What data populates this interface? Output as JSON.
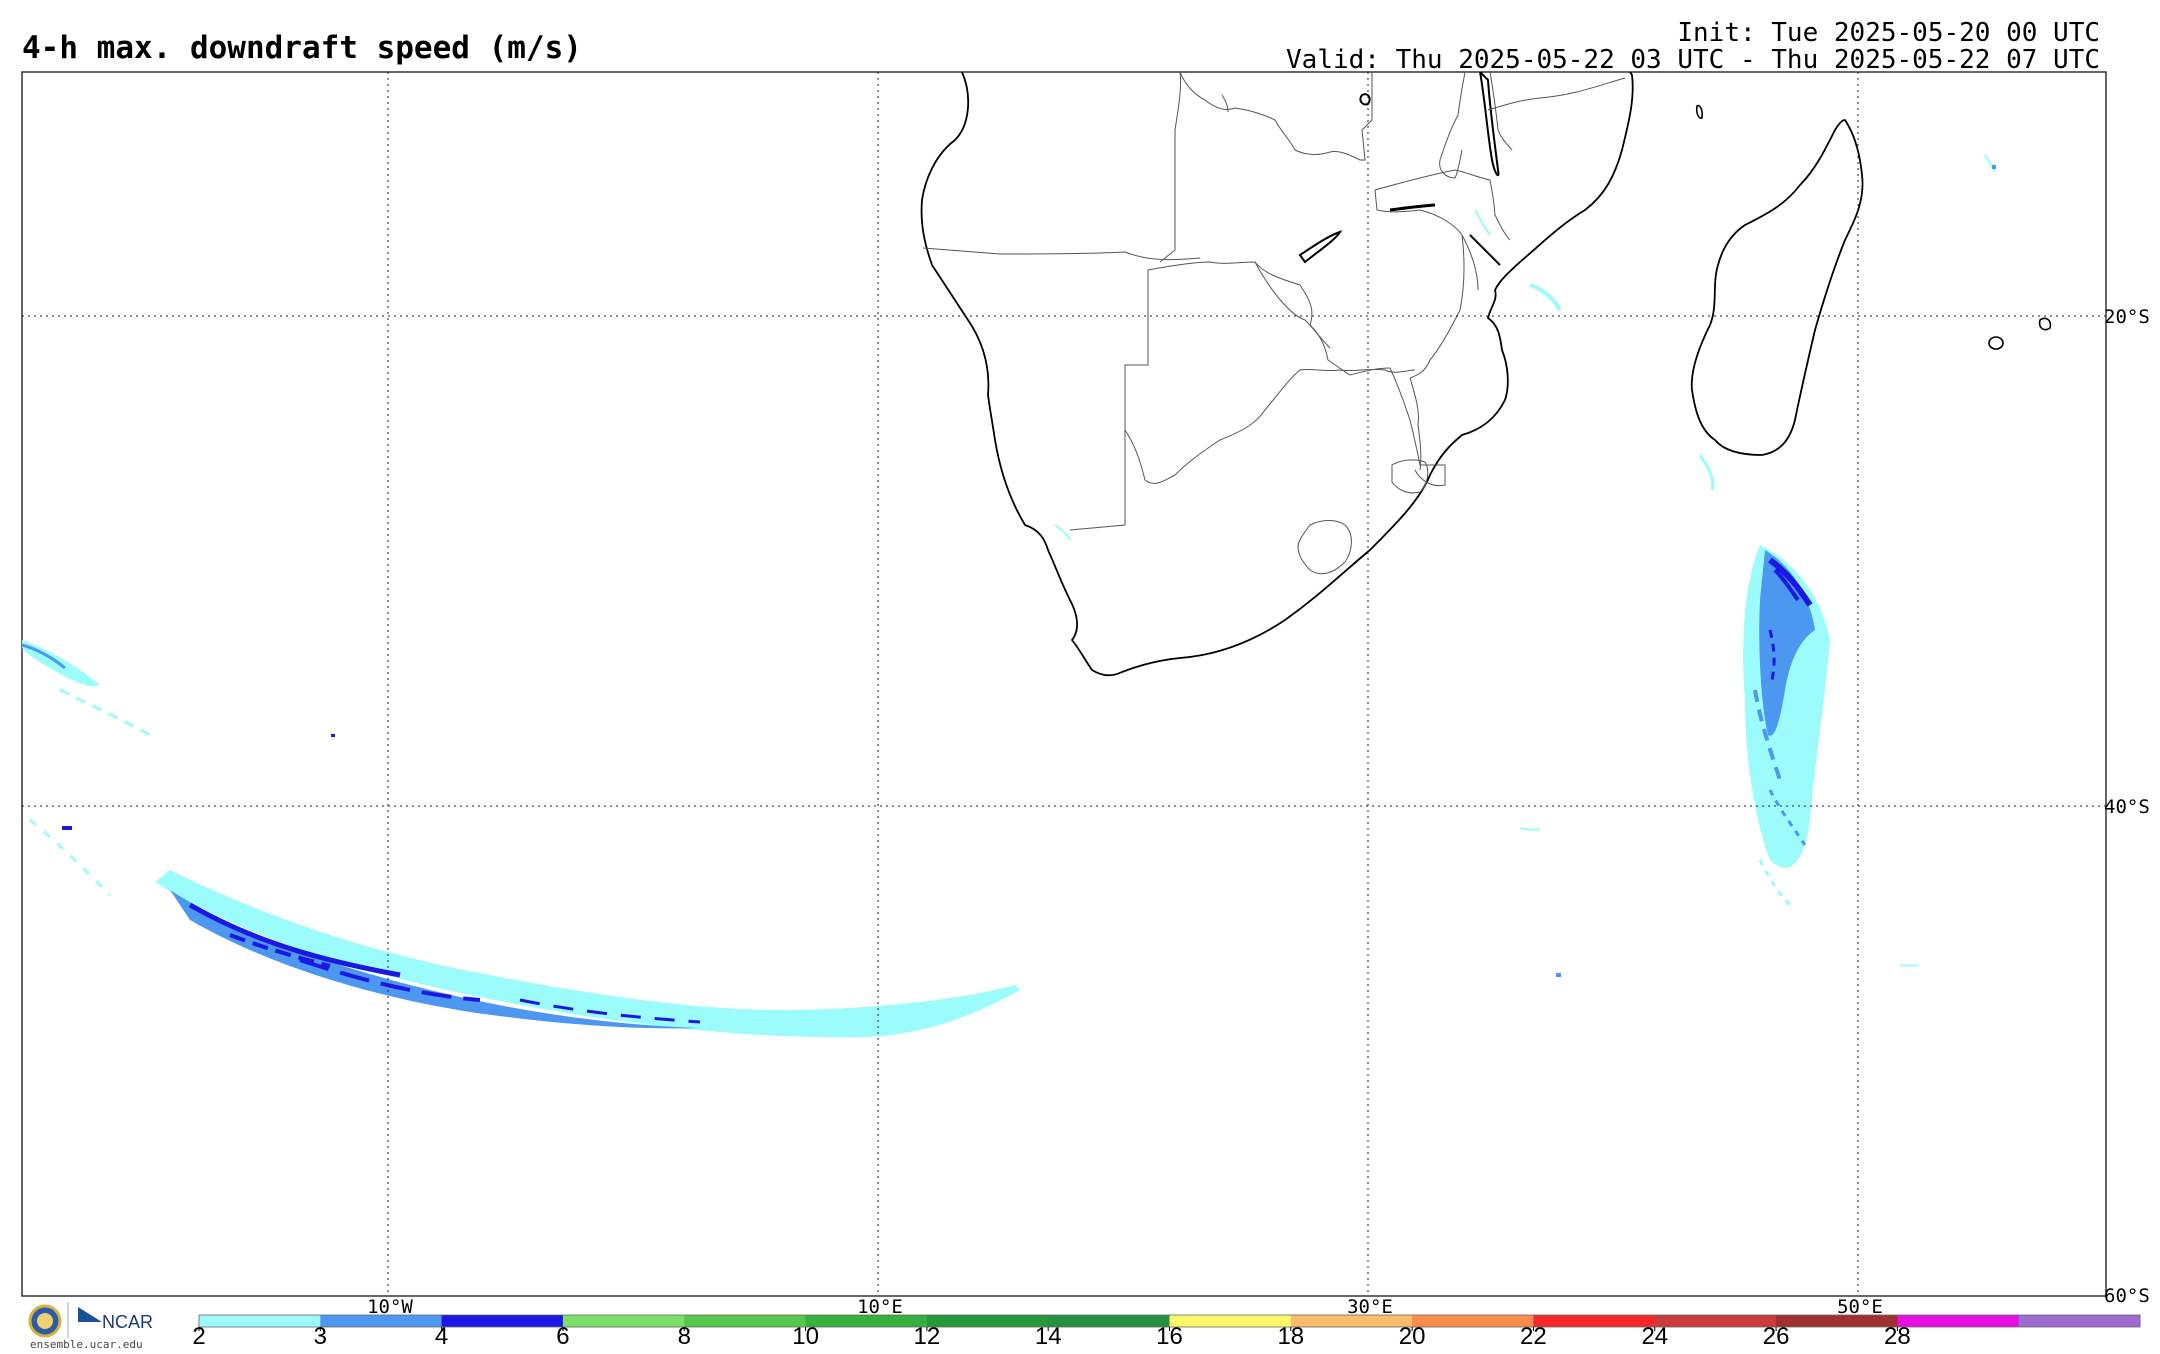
{
  "header": {
    "title": "4-h max. downdraft speed (m/s)",
    "init": "Init: Tue 2025-05-20 00 UTC",
    "valid": "Valid: Thu 2025-05-22 03 UTC - Thu 2025-05-22 07 UTC"
  },
  "map": {
    "lon_labels": [
      "10°W",
      "10°E",
      "30°E",
      "50°E"
    ],
    "lat_labels": [
      "20°S",
      "40°S",
      "60°S"
    ],
    "grid_style": "dotted"
  },
  "colorbar": {
    "ticks": [
      "2",
      "3",
      "4",
      "6",
      "8",
      "10",
      "12",
      "14",
      "16",
      "18",
      "20",
      "22",
      "24",
      "26",
      "28"
    ],
    "colors": [
      "#9cfcfc",
      "#4c97f0",
      "#1c18e4",
      "#7ce068",
      "#54c84c",
      "#38b040",
      "#28983c",
      "#249040",
      "#fcf868",
      "#fcbc6c",
      "#fc8c4c",
      "#f42828",
      "#cc3c3c",
      "#a03030",
      "#e810e0",
      "#9c6cd0"
    ]
  },
  "footer": {
    "logo_text": "NCAR",
    "url": "ensemble.ucar.edu"
  }
}
